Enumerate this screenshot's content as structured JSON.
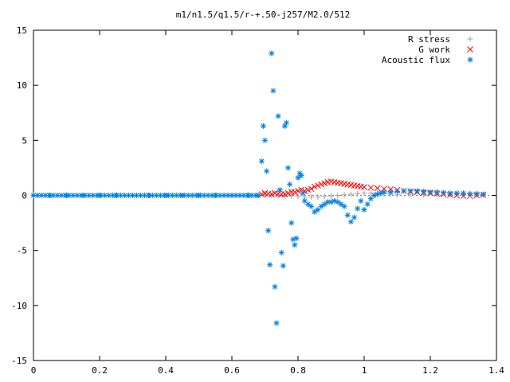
{
  "chart_data": {
    "type": "scatter",
    "title": "m1/n1.5/q1.5/r-+.50-j257/M2.0/512",
    "xlabel": "",
    "ylabel": "",
    "xlim": [
      0,
      1.4
    ],
    "ylim": [
      -15,
      15
    ],
    "x_ticks": [
      "0",
      "0.2",
      "0.4",
      "0.6",
      "0.8",
      "1",
      "1.2",
      "1.4"
    ],
    "y_ticks": [
      "15",
      "10",
      "5",
      "0",
      "-5",
      "-10",
      "-15"
    ],
    "grid": false,
    "legend_position": "top-right",
    "series": [
      {
        "name": "R stress",
        "marker": "plus",
        "color": "#a0a0a0",
        "x": [
          0.0,
          0.1,
          0.2,
          0.3,
          0.4,
          0.5,
          0.6,
          0.66,
          0.7,
          0.72,
          0.74,
          0.76,
          0.78,
          0.8,
          0.82,
          0.84,
          0.86,
          0.88,
          0.9,
          0.92,
          0.94,
          0.96,
          0.98,
          1.0,
          1.02,
          1.04,
          1.06,
          1.08,
          1.1,
          1.14,
          1.18,
          1.22,
          1.26,
          1.3,
          1.34,
          1.36
        ],
        "y": [
          0,
          0,
          0,
          0,
          0,
          0,
          0,
          0,
          0.05,
          0.0,
          -0.05,
          -0.05,
          -0.05,
          -0.1,
          -0.15,
          -0.15,
          -0.15,
          -0.1,
          -0.05,
          0.0,
          0.05,
          0.1,
          0.15,
          0.2,
          0.2,
          0.2,
          0.15,
          0.1,
          0.05,
          0.05,
          0.05,
          0.05,
          0.05,
          0.05,
          0.05,
          0.05
        ]
      },
      {
        "name": "G work",
        "marker": "cross",
        "color": "#ff0000",
        "x": [
          0.69,
          0.7,
          0.71,
          0.72,
          0.73,
          0.74,
          0.75,
          0.76,
          0.77,
          0.78,
          0.79,
          0.8,
          0.81,
          0.82,
          0.83,
          0.84,
          0.85,
          0.86,
          0.87,
          0.88,
          0.89,
          0.9,
          0.91,
          0.92,
          0.93,
          0.94,
          0.95,
          0.96,
          0.97,
          0.98,
          0.99,
          1.0,
          1.02,
          1.04,
          1.06,
          1.08,
          1.1,
          1.12,
          1.14,
          1.16,
          1.18,
          1.2,
          1.22,
          1.24,
          1.26,
          1.28,
          1.3,
          1.32,
          1.34,
          1.36
        ],
        "y": [
          0.1,
          0.2,
          0.15,
          0.1,
          0.2,
          0.15,
          0.1,
          0.1,
          0.2,
          0.3,
          0.3,
          0.4,
          0.5,
          0.4,
          0.5,
          0.6,
          0.8,
          0.9,
          1.0,
          1.1,
          1.2,
          1.25,
          1.2,
          1.15,
          1.1,
          1.05,
          1.0,
          0.95,
          0.9,
          0.85,
          0.8,
          0.75,
          0.7,
          0.65,
          0.6,
          0.55,
          0.5,
          0.4,
          0.35,
          0.3,
          0.25,
          0.2,
          0.15,
          0.1,
          0.05,
          0.0,
          -0.05,
          -0.05,
          0.0,
          0.05
        ]
      },
      {
        "name": "Acoustic flux",
        "marker": "star",
        "color": "#0080e0",
        "x": [
          0.0,
          0.05,
          0.1,
          0.15,
          0.2,
          0.25,
          0.3,
          0.35,
          0.4,
          0.45,
          0.5,
          0.55,
          0.6,
          0.65,
          0.68,
          0.69,
          0.695,
          0.7,
          0.705,
          0.71,
          0.715,
          0.72,
          0.725,
          0.73,
          0.735,
          0.74,
          0.745,
          0.75,
          0.755,
          0.76,
          0.765,
          0.77,
          0.775,
          0.78,
          0.785,
          0.79,
          0.795,
          0.8,
          0.805,
          0.81,
          0.815,
          0.82,
          0.83,
          0.84,
          0.85,
          0.86,
          0.87,
          0.88,
          0.89,
          0.9,
          0.91,
          0.92,
          0.93,
          0.94,
          0.95,
          0.96,
          0.97,
          0.98,
          0.99,
          1.0,
          1.01,
          1.02,
          1.03,
          1.04,
          1.05,
          1.06,
          1.08,
          1.1,
          1.12,
          1.14,
          1.16,
          1.18,
          1.2,
          1.22,
          1.24,
          1.26,
          1.28,
          1.3,
          1.32,
          1.34,
          1.36
        ],
        "y": [
          0,
          0,
          0,
          0,
          0,
          0,
          0,
          0,
          0,
          0,
          0,
          0,
          0,
          0,
          0,
          3.1,
          6.3,
          5.0,
          2.2,
          -3.2,
          -6.3,
          12.9,
          9.5,
          -8.3,
          -11.6,
          7.2,
          0.5,
          -5.2,
          -6.4,
          6.3,
          6.6,
          2.5,
          1.0,
          -2.5,
          -4.0,
          -4.5,
          -3.9,
          1.6,
          2.0,
          1.8,
          0.2,
          -0.5,
          -0.8,
          -1.0,
          -1.5,
          -1.3,
          -1.0,
          -0.8,
          -0.6,
          -0.6,
          -0.5,
          -0.6,
          -0.8,
          -1.0,
          -1.8,
          -2.4,
          -2.0,
          -1.2,
          -0.5,
          -1.3,
          -0.8,
          -0.3,
          0.0,
          0.1,
          0.2,
          0.3,
          0.3,
          0.35,
          0.4,
          0.4,
          0.4,
          0.35,
          0.3,
          0.3,
          0.25,
          0.2,
          0.2,
          0.2,
          0.15,
          0.15,
          0.1
        ]
      }
    ]
  }
}
